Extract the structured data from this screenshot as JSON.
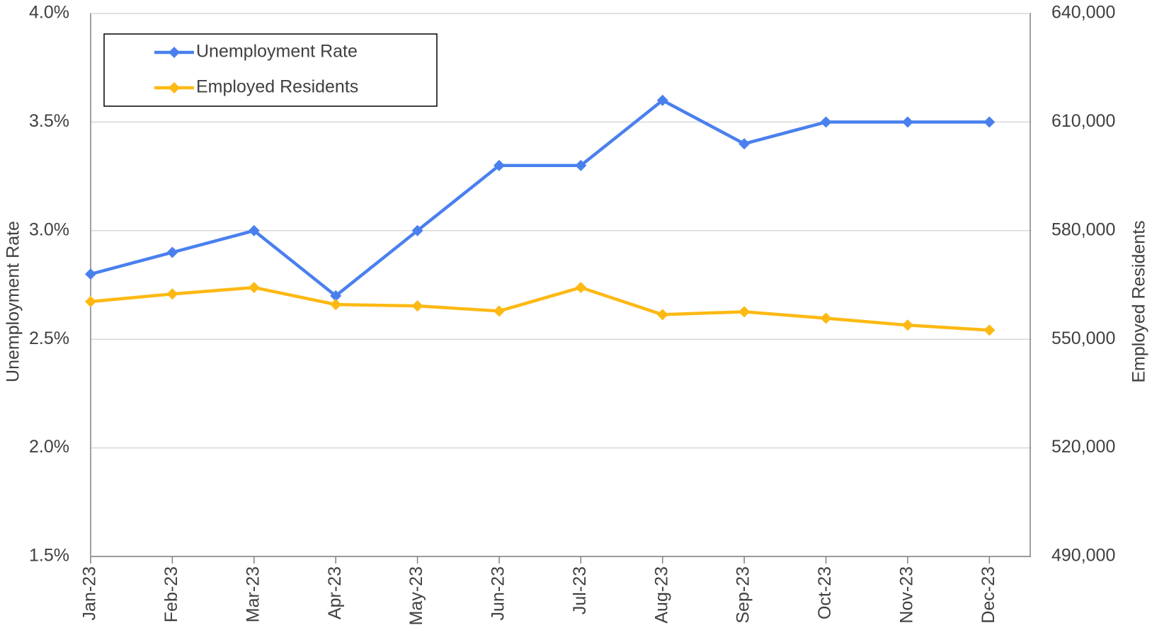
{
  "chart_data": {
    "type": "line",
    "categories": [
      "Jan-23",
      "Feb-23",
      "Mar-23",
      "Apr-23",
      "May-23",
      "Jun-23",
      "Jul-23",
      "Aug-23",
      "Sep-23",
      "Oct-23",
      "Nov-23",
      "Dec-23"
    ],
    "series": [
      {
        "name": "Unemployment Rate",
        "color": "#4a80ee",
        "values": [
          2.8,
          2.9,
          3.0,
          2.7,
          3.0,
          3.3,
          3.3,
          3.6,
          3.4,
          3.5,
          3.5,
          3.5
        ]
      },
      {
        "name": "Employed Residents",
        "color": "#fdb913",
        "axis": "y2",
        "values": [
          560400,
          562500,
          564300,
          559600,
          559200,
          557800,
          564300,
          556800,
          557600,
          555800,
          553900,
          552500
        ]
      }
    ],
    "y_label": "Unemployment Rate",
    "y2_label": "Employed Residents",
    "ylim": [
      1.5,
      4.0
    ],
    "yticks": [
      {
        "value": 1.5,
        "label": "1.5%"
      },
      {
        "value": 2.0,
        "label": "2.0%"
      },
      {
        "value": 2.5,
        "label": "2.5%"
      },
      {
        "value": 3.0,
        "label": "3.0%"
      },
      {
        "value": 3.5,
        "label": "3.5%"
      },
      {
        "value": 4.0,
        "label": "4.0%"
      }
    ],
    "y2lim": [
      490000,
      640000
    ],
    "y2ticks": [
      {
        "value": 490000,
        "label": "490,000"
      },
      {
        "value": 520000,
        "label": "520,000"
      },
      {
        "value": 550000,
        "label": "550,000"
      },
      {
        "value": 580000,
        "label": "580,000"
      },
      {
        "value": 610000,
        "label": "610,000"
      },
      {
        "value": 640000,
        "label": "640,000"
      }
    ],
    "grid": true,
    "legend": "upper left"
  }
}
